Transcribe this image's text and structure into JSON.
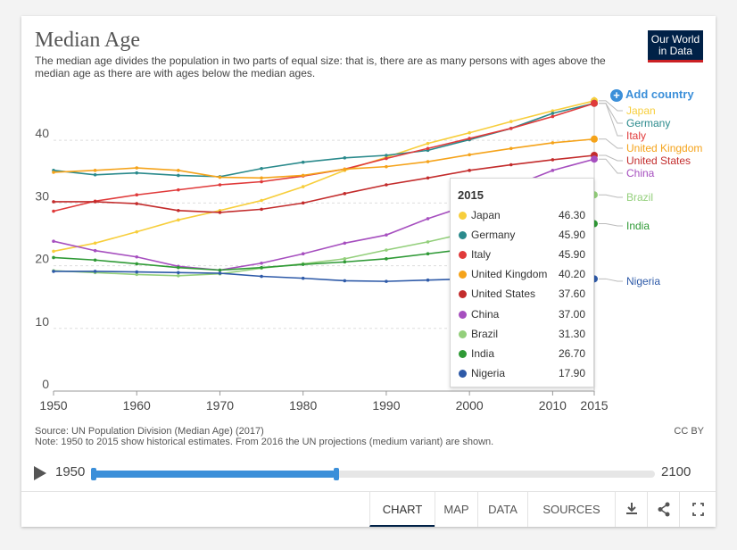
{
  "header": {
    "title": "Median Age",
    "subtitle": "The median age divides the population in two parts of equal size: that is, there are as many persons with ages above the median age as there are with ages below the median ages.",
    "logo_line1": "Our World",
    "logo_line2": "in Data",
    "add_country": "Add country"
  },
  "chart_data": {
    "type": "line",
    "title": "Median Age",
    "x": [
      1950,
      1955,
      1960,
      1965,
      1970,
      1975,
      1980,
      1985,
      1990,
      1995,
      2000,
      2005,
      2010,
      2015
    ],
    "xticks": [
      "1950",
      "1960",
      "1970",
      "1980",
      "1990",
      "2000",
      "2010",
      "2015"
    ],
    "xtick_values": [
      1950,
      1960,
      1970,
      1980,
      1990,
      2000,
      2010,
      2015
    ],
    "yticks": [
      "0",
      "10",
      "20",
      "30",
      "40"
    ],
    "ylim": [
      0,
      47
    ],
    "xlim": [
      1950,
      2015
    ],
    "series": [
      {
        "name": "Japan",
        "color": "#f7ce3c",
        "values": [
          22.3,
          23.6,
          25.4,
          27.3,
          28.8,
          30.4,
          32.6,
          35.2,
          37.3,
          39.5,
          41.2,
          43.0,
          44.7,
          46.3
        ]
      },
      {
        "name": "Germany",
        "color": "#2a8a8c",
        "values": [
          35.2,
          34.5,
          34.8,
          34.4,
          34.2,
          35.5,
          36.5,
          37.2,
          37.6,
          38.4,
          40.1,
          41.9,
          44.3,
          45.9
        ]
      },
      {
        "name": "Italy",
        "color": "#e03a3a",
        "values": [
          28.7,
          30.3,
          31.3,
          32.1,
          32.9,
          33.4,
          34.3,
          35.4,
          37.1,
          38.7,
          40.3,
          41.9,
          43.8,
          45.9
        ]
      },
      {
        "name": "United Kingdom",
        "color": "#f5a31a",
        "values": [
          34.9,
          35.2,
          35.6,
          35.2,
          34.1,
          34.0,
          34.4,
          35.4,
          35.8,
          36.6,
          37.7,
          38.7,
          39.6,
          40.2
        ]
      },
      {
        "name": "United States",
        "color": "#c32c2c",
        "values": [
          30.2,
          30.2,
          29.9,
          28.8,
          28.5,
          29.0,
          30.0,
          31.5,
          32.9,
          34.0,
          35.2,
          36.1,
          36.9,
          37.6
        ]
      },
      {
        "name": "China",
        "color": "#a64fbf",
        "values": [
          23.9,
          22.4,
          21.4,
          19.9,
          19.3,
          20.4,
          21.9,
          23.6,
          24.9,
          27.5,
          29.7,
          32.6,
          35.2,
          37.0
        ]
      },
      {
        "name": "Brazil",
        "color": "#93cf7b",
        "values": [
          19.2,
          18.9,
          18.6,
          18.4,
          18.7,
          19.6,
          20.3,
          21.1,
          22.5,
          23.8,
          25.3,
          27.4,
          29.1,
          31.3
        ]
      },
      {
        "name": "India",
        "color": "#2f9a36",
        "values": [
          21.3,
          20.9,
          20.3,
          19.7,
          19.3,
          19.7,
          20.2,
          20.6,
          21.1,
          21.9,
          22.7,
          23.8,
          25.1,
          26.7
        ]
      },
      {
        "name": "Nigeria",
        "color": "#2e5aa8",
        "values": [
          19.1,
          19.1,
          19.0,
          18.9,
          18.8,
          18.3,
          18.0,
          17.6,
          17.5,
          17.7,
          17.9,
          17.9,
          17.8,
          17.9
        ]
      }
    ],
    "legend_labels": [
      {
        "name": "Japan",
        "color": "#f7ce3c"
      },
      {
        "name": "Germany",
        "color": "#2a8a8c"
      },
      {
        "name": "Italy",
        "color": "#e03a3a"
      },
      {
        "name": "United Kingdom",
        "color": "#f5a31a"
      },
      {
        "name": "United States",
        "color": "#c32c2c"
      },
      {
        "name": "China",
        "color": "#a64fbf"
      },
      {
        "name": "Brazil",
        "color": "#93cf7b"
      },
      {
        "name": "India",
        "color": "#2f9a36"
      },
      {
        "name": "Nigeria",
        "color": "#2e5aa8"
      }
    ]
  },
  "tooltip": {
    "year": "2015",
    "rows": [
      {
        "name": "Japan",
        "value": "46.30",
        "color": "#f7ce3c"
      },
      {
        "name": "Germany",
        "value": "45.90",
        "color": "#2a8a8c"
      },
      {
        "name": "Italy",
        "value": "45.90",
        "color": "#e03a3a"
      },
      {
        "name": "United Kingdom",
        "value": "40.20",
        "color": "#f5a31a"
      },
      {
        "name": "United States",
        "value": "37.60",
        "color": "#c32c2c"
      },
      {
        "name": "China",
        "value": "37.00",
        "color": "#a64fbf"
      },
      {
        "name": "Brazil",
        "value": "31.30",
        "color": "#93cf7b"
      },
      {
        "name": "India",
        "value": "26.70",
        "color": "#2f9a36"
      },
      {
        "name": "Nigeria",
        "value": "17.90",
        "color": "#2e5aa8"
      }
    ]
  },
  "footer": {
    "source": "Source: UN Population Division (Median Age) (2017)",
    "note": "Note: 1950 to 2015 show historical estimates. From 2016 the UN projections (medium variant) are shown.",
    "license": "CC BY"
  },
  "timeline": {
    "start_year": "1950",
    "end_year": "2100",
    "range_min": 1950,
    "range_max": 2100,
    "selected_start": 1950,
    "selected_end": 2015
  },
  "tabs": {
    "chart": "CHART",
    "map": "MAP",
    "data": "DATA",
    "sources": "SOURCES"
  }
}
